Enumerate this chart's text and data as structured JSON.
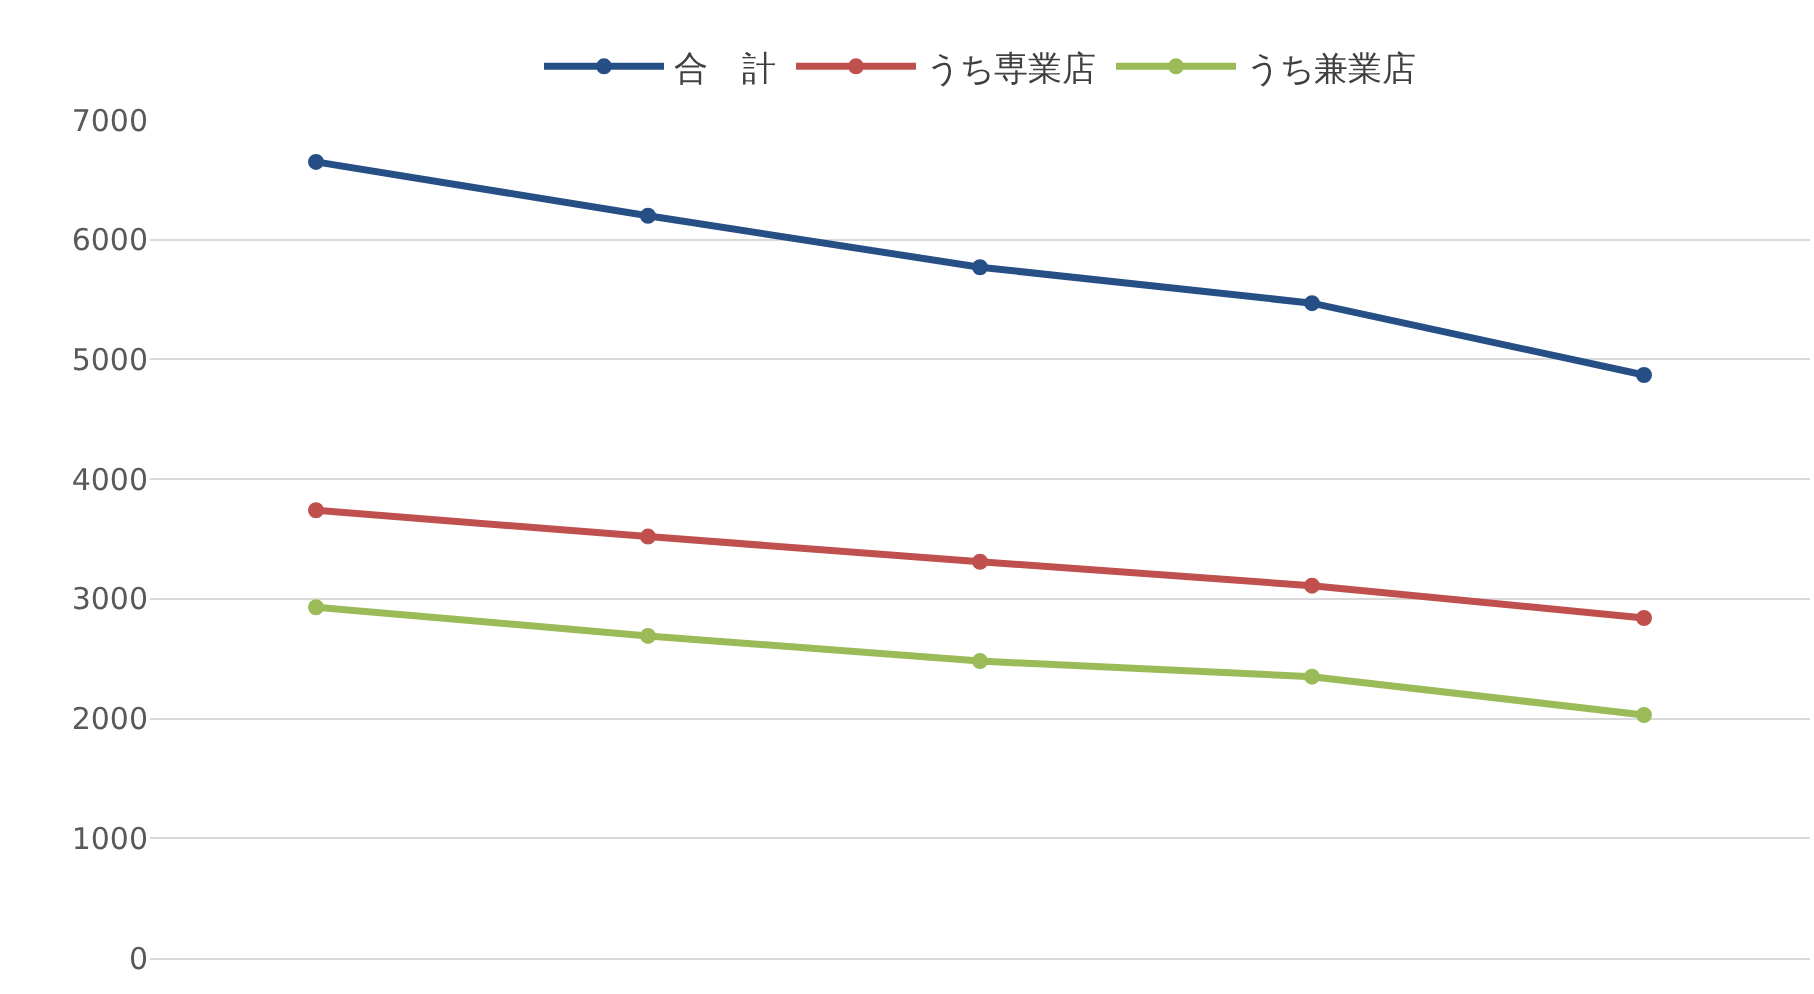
{
  "chart_data": {
    "type": "line",
    "categories": [
      null,
      null,
      null,
      null,
      null
    ],
    "series": [
      {
        "name": "合　計",
        "color": "#264f86",
        "values": [
          6650,
          6200,
          5770,
          5470,
          4870
        ]
      },
      {
        "name": "うち専業店",
        "color": "#c0504d",
        "values": [
          3740,
          3520,
          3310,
          3110,
          2840
        ]
      },
      {
        "name": "うち兼業店",
        "color": "#9bbb59",
        "values": [
          2930,
          2690,
          2480,
          2350,
          2030
        ]
      }
    ],
    "ylim": [
      0,
      7000
    ],
    "yticks": [
      0,
      1000,
      2000,
      3000,
      4000,
      5000,
      6000,
      7000
    ],
    "grid": "y",
    "legend": "top",
    "marker": "circle",
    "line_style": "solid"
  }
}
